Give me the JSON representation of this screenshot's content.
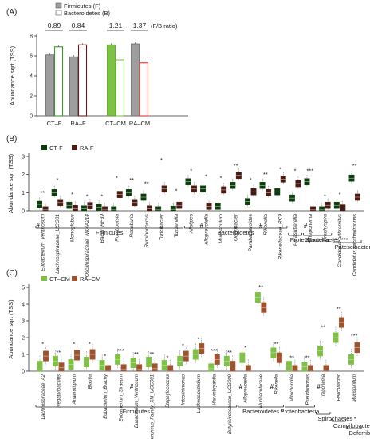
{
  "panel_labels": [
    "(A)",
    "(B)",
    "(C)"
  ],
  "chart_data": [
    {
      "type": "bar",
      "ylabel": "Abundance sqrt (TSS)",
      "ylim": [
        0,
        8
      ],
      "yticks": [
        0,
        2,
        4,
        6,
        8
      ],
      "legend": [
        "Firmicutes (F)",
        "Bacteroidetes (B)"
      ],
      "ratio_label": "(F/B ratio)",
      "groups": [
        {
          "name": "CT–F",
          "ratio": "0.89",
          "firmicutes": 6.1,
          "bacteroidetes": 6.9,
          "f_color": "#9e9e9e",
          "b_color": "#3a9a2a"
        },
        {
          "name": "RA–F",
          "ratio": "0.84",
          "firmicutes": 5.9,
          "bacteroidetes": 7.1,
          "f_color": "#9e9e9e",
          "b_color": "#6b1a1a"
        },
        {
          "name": "CT–CM",
          "ratio": "1.21",
          "firmicutes": 7.1,
          "bacteroidetes": 5.6,
          "f_color": "#7dc242",
          "b_color": "#7dc242"
        },
        {
          "name": "RA–CM",
          "ratio": "1.37",
          "firmicutes": 7.2,
          "bacteroidetes": 5.3,
          "f_color": "#9e9e9e",
          "b_color": "#e0332e"
        }
      ]
    },
    {
      "type": "box",
      "ylabel": "Abundance  sqrt (TSS)",
      "ylim": [
        0,
        3
      ],
      "yticks": [
        0,
        1,
        2,
        3
      ],
      "legend": [
        {
          "name": "CT-F",
          "color": "#0b3d0b"
        },
        {
          "name": "RA-F",
          "color": "#4a1a10"
        }
      ],
      "taxa": [
        {
          "name": "Eubacterium_ventriosum",
          "hash": true,
          "sig": "**",
          "ct": 0.35,
          "ra": 0.05,
          "max": 0.8
        },
        {
          "name": "Lachnospiraceae_UCG01",
          "hash": false,
          "sig": "*",
          "ct": 1.0,
          "ra": 0.45,
          "max": 1.5
        },
        {
          "name": "Monoglobus",
          "hash": false,
          "sig": "*",
          "ct": 0.3,
          "ra": 0.12,
          "max": 0.7
        },
        {
          "name": "Oscillospiraceae_NK4A214",
          "hash": false,
          "sig": "*",
          "ct": 0.1,
          "ra": 0.28,
          "max": 0.6
        },
        {
          "name": "Bacilli_RF39",
          "hash": false,
          "sig": "*",
          "ct": 0.2,
          "ra": 0.05,
          "max": 0.6
        },
        {
          "name": "Romboutsia",
          "hash": false,
          "sig": "*",
          "ct": 0.05,
          "ra": 0.9,
          "max": 1.6
        },
        {
          "name": "Roseburia",
          "hash": false,
          "sig": "**",
          "ct": 1.0,
          "ra": 0.45,
          "max": 1.5
        },
        {
          "name": "Ruminococcus",
          "hash": false,
          "sig": "**",
          "ct": 0.75,
          "ra": 0.1,
          "max": 1.3
        },
        {
          "name": "Turicibacter",
          "hash": false,
          "sig": "*",
          "ct": 0.05,
          "ra": 1.2,
          "max": 2.6
        },
        {
          "name": "Tuzzerella",
          "hash": false,
          "sig": "*",
          "ct": 0.08,
          "ra": 0.3,
          "max": 0.9
        },
        {
          "name": "Alistipes",
          "hash": false,
          "sig": "*",
          "ct": 1.6,
          "ra": 1.2,
          "max": 2.0
        },
        {
          "name": "Alloprevotella",
          "hash": true,
          "sig": "*",
          "ct": 1.2,
          "ra": 0.25,
          "max": 1.7
        },
        {
          "name": "Muribaculum",
          "hash": false,
          "sig": "*",
          "ct": 0.25,
          "ra": 1.15,
          "max": 1.6
        },
        {
          "name": "Odoribacter",
          "hash": false,
          "sig": "**",
          "ct": 1.4,
          "ra": 1.95,
          "max": 2.3
        },
        {
          "name": "Parabacteroides",
          "hash": false,
          "sig": "*",
          "ct": 0.5,
          "ra": 1.05,
          "max": 1.5
        },
        {
          "name": "Rikenella",
          "hash": true,
          "sig": "**",
          "ct": 1.4,
          "ra": 1.0,
          "max": 1.8
        },
        {
          "name": "Rikenellaceae_RC9",
          "hash": false,
          "sig": "*",
          "ct": 1.05,
          "ra": 1.75,
          "max": 2.1
        },
        {
          "name": "Parasutterella",
          "hash": false,
          "sig": "*",
          "ct": 0.7,
          "ra": 1.5,
          "max": 2.0
        },
        {
          "name": "Treponema",
          "hash": true,
          "sig": "***",
          "ct": 1.6,
          "ra": 0.05,
          "max": 2.0
        },
        {
          "name": "Brachyspira",
          "hash": false,
          "sig": "*",
          "ct": 0.05,
          "ra": 0.3,
          "max": 0.6
        },
        {
          "name": "Candidatus arthromitus",
          "hash": false,
          "sig": "*",
          "ct": 0.3,
          "ra": 0.15,
          "max": 0.7
        },
        {
          "name": "Candidatus saccharimonas",
          "hash": false,
          "sig": "**",
          "ct": 1.8,
          "ra": 0.75,
          "max": 2.3
        }
      ],
      "phyla": [
        {
          "name": "Firmicutes",
          "from": 0,
          "to": 9,
          "row": 0,
          "sig": ""
        },
        {
          "name": "Bacteroidetes",
          "from": 10,
          "to": 16,
          "row": 0,
          "sig": ""
        },
        {
          "name": "Proteobacteria",
          "from": 17,
          "to": 17,
          "row": 1,
          "sig": "**"
        },
        {
          "name": "Spirochaetes",
          "from": 18,
          "to": 19,
          "row": 1,
          "sig": "***"
        },
        {
          "name": "Patescibacteria",
          "from": 20,
          "to": 21,
          "row": 2,
          "sig": "**"
        }
      ]
    },
    {
      "type": "box",
      "ylabel": "Abundance sqrt (TSS)",
      "ylim": [
        0,
        5
      ],
      "yticks": [
        0,
        1,
        2,
        3,
        4,
        5
      ],
      "legend": [
        {
          "name": "CT–CM",
          "color": "#7dc242"
        },
        {
          "name": "RA–CM",
          "color": "#a0522d"
        }
      ],
      "taxa": [
        {
          "name": "Lachnospiraceae_A2",
          "hash": false,
          "sig": "*",
          "ct": 0.3,
          "ra": 0.9,
          "max": 1.4
        },
        {
          "name": "Negativibacillus",
          "hash": false,
          "sig": "**",
          "ct": 0.6,
          "ra": 0.2,
          "max": 0.9
        },
        {
          "name": "Anaerotignum",
          "hash": false,
          "sig": "*",
          "ct": 0.4,
          "ra": 0.95,
          "max": 1.4
        },
        {
          "name": "Blautia",
          "hash": false,
          "sig": "*",
          "ct": 0.55,
          "ra": 1.0,
          "max": 1.4
        },
        {
          "name": "Eubacterium_Brachy",
          "hash": false,
          "sig": "*",
          "ct": 0.35,
          "ra": 0.05,
          "max": 0.7
        },
        {
          "name": "Eubacterium_Siraeum",
          "hash": false,
          "sig": "***",
          "ct": 0.7,
          "ra": 0.1,
          "max": 1.0
        },
        {
          "name": "Eubacterium_Ventriosum",
          "hash": true,
          "sig": "**",
          "ct": 0.5,
          "ra": 0.1,
          "max": 0.8
        },
        {
          "name": "Anaerotruncus_Family_XIII_UCG001",
          "hash": false,
          "sig": "**",
          "ct": 0.55,
          "ra": 0.15,
          "max": 0.8
        },
        {
          "name": "Staphylococcus",
          "hash": false,
          "sig": "*",
          "ct": 0.35,
          "ra": 0.05,
          "max": 0.6
        },
        {
          "name": "Intestinimonas",
          "hash": false,
          "sig": "*",
          "ct": 0.6,
          "ra": 0.9,
          "max": 1.3
        },
        {
          "name": "Lachnoclostridium",
          "hash": false,
          "sig": "*",
          "ct": 1.0,
          "ra": 1.35,
          "max": 1.7
        },
        {
          "name": "Marvinbryantia",
          "hash": false,
          "sig": "***",
          "ct": 0.15,
          "ra": 0.7,
          "max": 1.0
        },
        {
          "name": "Butyricicoccaceae_UCG009",
          "hash": false,
          "sig": "**",
          "ct": 0.6,
          "ra": 0.3,
          "max": 0.9
        },
        {
          "name": "Alloprevotella",
          "hash": true,
          "sig": "*",
          "ct": 0.8,
          "ra": 0.05,
          "max": 1.2
        },
        {
          "name": "Muribaculaceae",
          "hash": false,
          "sig": "**",
          "ct": 4.4,
          "ra": 3.8,
          "max": 4.8
        },
        {
          "name": "Rikenella",
          "hash": true,
          "sig": "**",
          "ct": 1.1,
          "ra": 0.8,
          "max": 1.4
        },
        {
          "name": "Mitochondria",
          "hash": false,
          "sig": "**",
          "ct": 0.3,
          "ra": 0.05,
          "max": 0.6
        },
        {
          "name": "Pseudomonas",
          "hash": false,
          "sig": "**",
          "ct": 0.25,
          "ra": 0.05,
          "max": 0.6
        },
        {
          "name": "Treponema",
          "hash": true,
          "sig": "**",
          "ct": 1.2,
          "ra": 0.05,
          "max": 2.4
        },
        {
          "name": "Helicobacter",
          "hash": false,
          "sig": "**",
          "ct": 2.0,
          "ra": 2.9,
          "max": 3.5
        },
        {
          "name": "Mucispirillum",
          "hash": false,
          "sig": "***",
          "ct": 0.7,
          "ra": 1.4,
          "max": 1.9
        }
      ],
      "phyla": [
        {
          "name": "Firmicutes",
          "from": 0,
          "to": 12,
          "row": 0,
          "sig": ""
        },
        {
          "name": "Bacteroidetes",
          "from": 13,
          "to": 15,
          "row": 0,
          "sig": "*"
        },
        {
          "name": "Proteobacteria",
          "from": 16,
          "to": 17,
          "row": 0,
          "sig": ""
        },
        {
          "name": "Spirochaetes",
          "from": 18,
          "to": 18,
          "row": 1,
          "sig": "*"
        },
        {
          "name": "Campilobacterota",
          "from": 19,
          "to": 19,
          "row": 2,
          "sig": "**"
        },
        {
          "name": "Deferribacteres",
          "from": 20,
          "to": 20,
          "row": 3,
          "sig": "***"
        }
      ]
    }
  ]
}
